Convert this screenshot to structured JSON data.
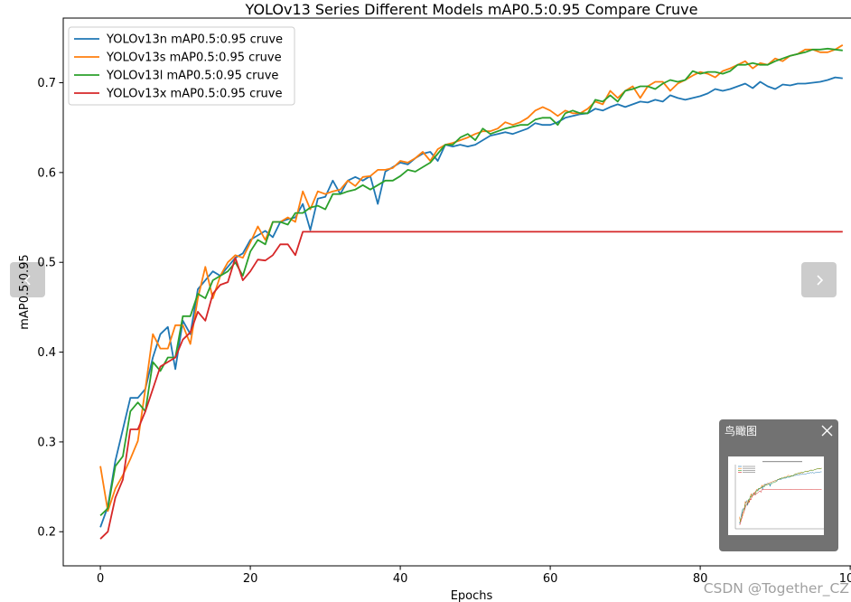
{
  "viewer": {
    "prev_icon": "chevron-left-icon",
    "next_icon": "chevron-right-icon",
    "minimap": {
      "title": "鸟瞰图",
      "close_icon": "close-icon"
    },
    "watermark": "CSDN @Together_CZ"
  },
  "chart_data": {
    "type": "line",
    "title": "YOLOv13 Series Different Models mAP0.5:0.95 Compare Cruve",
    "xlabel": "Epochs",
    "ylabel": "mAP0.5:0.95",
    "xlim": [
      -4.95,
      103.95
    ],
    "ylim": [
      0.162,
      0.772
    ],
    "xticks": [
      0,
      20,
      40,
      60,
      80,
      100
    ],
    "x_tick_labels": [
      "0",
      "20",
      "40",
      "60",
      "80",
      "100"
    ],
    "yticks": [
      0.2,
      0.3,
      0.4,
      0.5,
      0.6,
      0.7
    ],
    "y_tick_labels": [
      "0.2",
      "0.3",
      "0.4",
      "0.5",
      "0.6",
      "0.7"
    ],
    "grid": false,
    "legend": "top-left",
    "x": [
      0,
      1,
      2,
      3,
      4,
      5,
      6,
      7,
      8,
      9,
      10,
      11,
      12,
      13,
      14,
      15,
      16,
      17,
      18,
      19,
      20,
      21,
      22,
      23,
      24,
      25,
      26,
      27,
      28,
      29,
      30,
      31,
      32,
      33,
      34,
      35,
      36,
      37,
      38,
      39,
      40,
      41,
      42,
      43,
      44,
      45,
      46,
      47,
      48,
      49,
      50,
      51,
      52,
      53,
      54,
      55,
      56,
      57,
      58,
      59,
      60,
      61,
      62,
      63,
      64,
      65,
      66,
      67,
      68,
      69,
      70,
      71,
      72,
      73,
      74,
      75,
      76,
      77,
      78,
      79,
      80,
      81,
      82,
      83,
      84,
      85,
      86,
      87,
      88,
      89,
      90,
      91,
      92,
      93,
      94,
      95,
      96,
      97,
      98,
      99
    ],
    "series": [
      {
        "name": "YOLOv13n mAP0.5:0.95 cruve",
        "color": "#1f77b4",
        "values": [
          0.205,
          0.228,
          0.279,
          0.314,
          0.349,
          0.349,
          0.359,
          0.394,
          0.42,
          0.428,
          0.381,
          0.435,
          0.42,
          0.47,
          0.48,
          0.49,
          0.485,
          0.495,
          0.505,
          0.51,
          0.525,
          0.53,
          0.535,
          0.528,
          0.545,
          0.548,
          0.55,
          0.565,
          0.536,
          0.571,
          0.573,
          0.591,
          0.576,
          0.591,
          0.595,
          0.591,
          0.596,
          0.565,
          0.601,
          0.606,
          0.611,
          0.609,
          0.616,
          0.621,
          0.623,
          0.613,
          0.631,
          0.629,
          0.631,
          0.629,
          0.631,
          0.636,
          0.641,
          0.643,
          0.645,
          0.643,
          0.646,
          0.649,
          0.655,
          0.653,
          0.653,
          0.656,
          0.661,
          0.663,
          0.665,
          0.666,
          0.671,
          0.669,
          0.673,
          0.676,
          0.673,
          0.676,
          0.679,
          0.678,
          0.681,
          0.679,
          0.686,
          0.683,
          0.681,
          0.683,
          0.685,
          0.688,
          0.693,
          0.691,
          0.693,
          0.696,
          0.699,
          0.694,
          0.701,
          0.696,
          0.693,
          0.698,
          0.697,
          0.699,
          0.699,
          0.7,
          0.701,
          0.703,
          0.706,
          0.705
        ]
      },
      {
        "name": "YOLOv13s mAP0.5:0.95 cruve",
        "color": "#ff7f0e",
        "values": [
          0.273,
          0.223,
          0.248,
          0.263,
          0.281,
          0.301,
          0.359,
          0.42,
          0.404,
          0.404,
          0.43,
          0.43,
          0.409,
          0.46,
          0.495,
          0.46,
          0.485,
          0.5,
          0.508,
          0.505,
          0.522,
          0.54,
          0.525,
          0.545,
          0.545,
          0.55,
          0.545,
          0.579,
          0.559,
          0.579,
          0.576,
          0.579,
          0.581,
          0.591,
          0.585,
          0.595,
          0.596,
          0.603,
          0.603,
          0.605,
          0.613,
          0.611,
          0.616,
          0.623,
          0.613,
          0.626,
          0.631,
          0.633,
          0.636,
          0.639,
          0.643,
          0.646,
          0.646,
          0.649,
          0.656,
          0.653,
          0.656,
          0.661,
          0.669,
          0.673,
          0.669,
          0.663,
          0.669,
          0.666,
          0.666,
          0.671,
          0.679,
          0.676,
          0.691,
          0.683,
          0.691,
          0.696,
          0.683,
          0.696,
          0.701,
          0.701,
          0.691,
          0.699,
          0.703,
          0.708,
          0.712,
          0.71,
          0.706,
          0.713,
          0.716,
          0.72,
          0.724,
          0.716,
          0.722,
          0.72,
          0.727,
          0.724,
          0.73,
          0.732,
          0.737,
          0.737,
          0.734,
          0.734,
          0.737,
          0.742
        ]
      },
      {
        "name": "YOLOv13l mAP0.5:0.95 cruve",
        "color": "#2ca02c",
        "values": [
          0.218,
          0.226,
          0.273,
          0.284,
          0.334,
          0.344,
          0.334,
          0.389,
          0.379,
          0.394,
          0.394,
          0.44,
          0.44,
          0.465,
          0.46,
          0.48,
          0.485,
          0.49,
          0.5,
          0.485,
          0.512,
          0.525,
          0.52,
          0.545,
          0.545,
          0.542,
          0.555,
          0.555,
          0.561,
          0.563,
          0.559,
          0.576,
          0.576,
          0.579,
          0.581,
          0.586,
          0.581,
          0.586,
          0.591,
          0.591,
          0.596,
          0.603,
          0.601,
          0.606,
          0.611,
          0.621,
          0.631,
          0.631,
          0.639,
          0.643,
          0.636,
          0.649,
          0.643,
          0.646,
          0.649,
          0.651,
          0.653,
          0.653,
          0.659,
          0.661,
          0.661,
          0.653,
          0.666,
          0.669,
          0.666,
          0.666,
          0.681,
          0.679,
          0.686,
          0.679,
          0.691,
          0.693,
          0.696,
          0.696,
          0.693,
          0.699,
          0.703,
          0.701,
          0.703,
          0.713,
          0.71,
          0.712,
          0.712,
          0.71,
          0.713,
          0.72,
          0.72,
          0.722,
          0.72,
          0.72,
          0.724,
          0.727,
          0.73,
          0.732,
          0.734,
          0.737,
          0.737,
          0.738,
          0.737,
          0.736
        ]
      },
      {
        "name": "YOLOv13x mAP0.5:0.95 cruve",
        "color": "#d62728",
        "values": [
          0.192,
          0.2,
          0.238,
          0.258,
          0.314,
          0.314,
          0.334,
          0.359,
          0.384,
          0.389,
          0.394,
          0.414,
          0.422,
          0.445,
          0.435,
          0.465,
          0.475,
          0.478,
          0.505,
          0.48,
          0.49,
          0.503,
          0.502,
          0.508,
          0.52,
          0.52,
          0.508,
          0.534,
          0.534,
          0.534,
          0.534,
          0.534,
          0.534,
          0.534,
          0.534,
          0.534,
          0.534,
          0.534,
          0.534,
          0.534,
          0.534,
          0.534,
          0.534,
          0.534,
          0.534,
          0.534,
          0.534,
          0.534,
          0.534,
          0.534,
          0.534,
          0.534,
          0.534,
          0.534,
          0.534,
          0.534,
          0.534,
          0.534,
          0.534,
          0.534,
          0.534,
          0.534,
          0.534,
          0.534,
          0.534,
          0.534,
          0.534,
          0.534,
          0.534,
          0.534,
          0.534,
          0.534,
          0.534,
          0.534,
          0.534,
          0.534,
          0.534,
          0.534,
          0.534,
          0.534,
          0.534,
          0.534,
          0.534,
          0.534,
          0.534,
          0.534,
          0.534,
          0.534,
          0.534,
          0.534,
          0.534,
          0.534,
          0.534,
          0.534,
          0.534,
          0.534,
          0.534,
          0.534,
          0.534,
          0.534
        ]
      }
    ]
  }
}
